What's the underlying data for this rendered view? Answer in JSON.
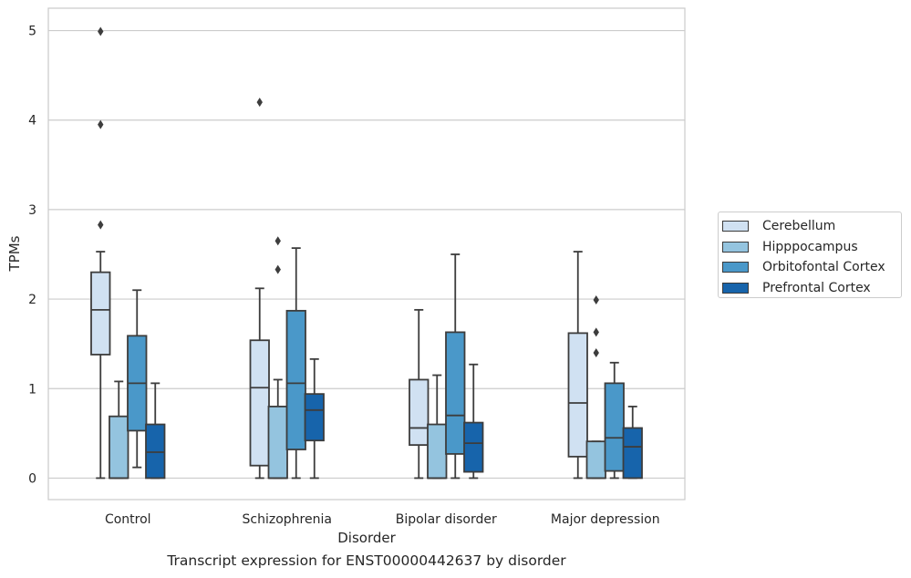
{
  "chart_data": {
    "type": "box",
    "xlabel": "Disorder",
    "ylabel": "TPMs",
    "caption": "Transcript expression for ENST00000442637 by disorder",
    "ylim": [
      -0.24,
      5.25
    ],
    "yticks": [
      0,
      1,
      2,
      3,
      4,
      5
    ],
    "grid": "horizontal",
    "legend_position": "right",
    "categories": [
      "Control",
      "Schizophrenia",
      "Bipolar disorder",
      "Major depression"
    ],
    "series": [
      {
        "name": "Cerebellum",
        "color": "#d0e1f2",
        "boxes": [
          {
            "whisker_low": 0,
            "q1": 1.38,
            "median": 1.88,
            "q3": 2.3,
            "whisker_high": 2.53,
            "outliers": [
              4.99,
              3.95,
              2.83
            ]
          },
          {
            "whisker_low": 0,
            "q1": 0.14,
            "median": 1.01,
            "q3": 1.54,
            "whisker_high": 2.12,
            "outliers": [
              4.2
            ]
          },
          {
            "whisker_low": 0,
            "q1": 0.37,
            "median": 0.56,
            "q3": 1.1,
            "whisker_high": 1.88,
            "outliers": []
          },
          {
            "whisker_low": 0,
            "q1": 0.24,
            "median": 0.84,
            "q3": 1.62,
            "whisker_high": 2.53,
            "outliers": []
          }
        ]
      },
      {
        "name": "Hipppocampus",
        "color": "#94c4df",
        "boxes": [
          {
            "whisker_low": 0,
            "q1": 0,
            "median": 0,
            "q3": 0.69,
            "whisker_high": 1.08,
            "outliers": []
          },
          {
            "whisker_low": 0,
            "q1": 0,
            "median": 0,
            "q3": 0.8,
            "whisker_high": 1.1,
            "outliers": [
              2.65,
              2.33
            ]
          },
          {
            "whisker_low": 0,
            "q1": 0,
            "median": 0,
            "q3": 0.6,
            "whisker_high": 1.15,
            "outliers": []
          },
          {
            "whisker_low": 0,
            "q1": 0,
            "median": 0,
            "q3": 0.41,
            "whisker_high": 0.41,
            "outliers": [
              1.99,
              1.63,
              1.4
            ]
          }
        ]
      },
      {
        "name": "Orbitofontal Cortex",
        "color": "#4a98c9",
        "boxes": [
          {
            "whisker_low": 0.12,
            "q1": 0.53,
            "median": 1.06,
            "q3": 1.59,
            "whisker_high": 2.1,
            "outliers": []
          },
          {
            "whisker_low": 0,
            "q1": 0.32,
            "median": 1.06,
            "q3": 1.87,
            "whisker_high": 2.57,
            "outliers": []
          },
          {
            "whisker_low": 0,
            "q1": 0.27,
            "median": 0.7,
            "q3": 1.63,
            "whisker_high": 2.5,
            "outliers": []
          },
          {
            "whisker_low": 0,
            "q1": 0.08,
            "median": 0.45,
            "q3": 1.06,
            "whisker_high": 1.29,
            "outliers": []
          }
        ]
      },
      {
        "name": "Prefrontal Cortex",
        "color": "#1764ab",
        "boxes": [
          {
            "whisker_low": 0,
            "q1": 0,
            "median": 0.29,
            "q3": 0.6,
            "whisker_high": 1.06,
            "outliers": []
          },
          {
            "whisker_low": 0,
            "q1": 0.42,
            "median": 0.76,
            "q3": 0.94,
            "whisker_high": 1.33,
            "outliers": []
          },
          {
            "whisker_low": 0,
            "q1": 0.07,
            "median": 0.39,
            "q3": 0.62,
            "whisker_high": 1.27,
            "outliers": []
          },
          {
            "whisker_low": 0,
            "q1": 0,
            "median": 0.35,
            "q3": 0.56,
            "whisker_high": 0.8,
            "outliers": []
          }
        ]
      }
    ]
  }
}
